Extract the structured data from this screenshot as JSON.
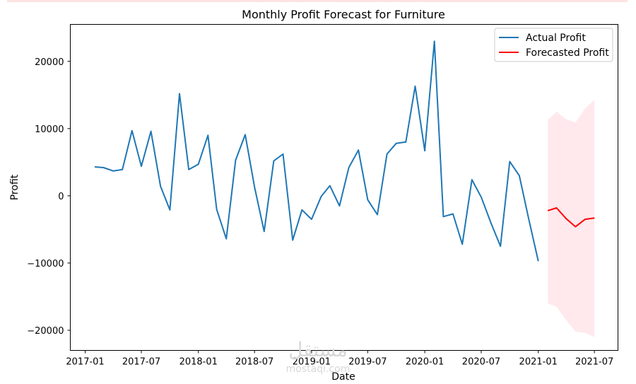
{
  "colors": {
    "actual": "#1f77b4",
    "forecast": "#ff0000",
    "confidence_band": "#ffc0cb",
    "top_strip": "#fde3e1"
  },
  "chart_data": {
    "type": "line",
    "title": "Monthly Profit Forecast for Furniture",
    "xlabel": "Date",
    "ylabel": "Profit",
    "xlim": [
      "2016-11-14",
      "2021-09-15"
    ],
    "ylim": [
      -23000,
      25500
    ],
    "x_ticks": [
      "2017-01",
      "2017-07",
      "2018-01",
      "2018-07",
      "2019-01",
      "2019-07",
      "2020-01",
      "2020-07",
      "2021-01",
      "2021-07"
    ],
    "y_ticks": [
      -20000,
      -10000,
      0,
      10000,
      20000
    ],
    "y_tick_labels": [
      "−20000",
      "−10000",
      "0",
      "10000",
      "20000"
    ],
    "grid": false,
    "legend_position": "top-right",
    "series": [
      {
        "name": "Actual Profit",
        "x": [
          "2017-02-01",
          "2017-03-01",
          "2017-04-01",
          "2017-05-01",
          "2017-06-01",
          "2017-07-01",
          "2017-08-01",
          "2017-09-01",
          "2017-10-01",
          "2017-11-01",
          "2017-12-01",
          "2018-01-01",
          "2018-02-01",
          "2018-03-01",
          "2018-04-01",
          "2018-05-01",
          "2018-06-01",
          "2018-07-01",
          "2018-08-01",
          "2018-09-01",
          "2018-10-01",
          "2018-11-01",
          "2018-12-01",
          "2019-01-01",
          "2019-02-01",
          "2019-03-01",
          "2019-04-01",
          "2019-05-01",
          "2019-06-01",
          "2019-07-01",
          "2019-08-01",
          "2019-09-01",
          "2019-10-01",
          "2019-11-01",
          "2019-12-01",
          "2020-01-01",
          "2020-02-01",
          "2020-03-01",
          "2020-04-01",
          "2020-05-01",
          "2020-06-01",
          "2020-07-01",
          "2020-08-01",
          "2020-09-01",
          "2020-10-01",
          "2020-11-01",
          "2020-12-01",
          "2021-01-01"
        ],
        "values": [
          4300,
          4200,
          3700,
          3900,
          9700,
          4400,
          9600,
          1400,
          -2100,
          15200,
          3900,
          4700,
          9000,
          -2000,
          -6400,
          5300,
          9100,
          1300,
          -5300,
          5200,
          6200,
          -6600,
          -2100,
          -3500,
          -100,
          1500,
          -1500,
          4200,
          6800,
          -600,
          -2800,
          6200,
          7800,
          8000,
          16300,
          6700,
          23000,
          -3100,
          -2700,
          -7200,
          2400,
          -200,
          -4000,
          -7500,
          5100,
          3000,
          -3400,
          -9700
        ]
      },
      {
        "name": "Forecasted Profit",
        "x": [
          "2021-02-01",
          "2021-03-01",
          "2021-04-01",
          "2021-05-01",
          "2021-06-01",
          "2021-07-01"
        ],
        "values": [
          -2200,
          -1800,
          -3400,
          -4600,
          -3500,
          -3300
        ],
        "lower": [
          -16000,
          -16500,
          -18500,
          -20200,
          -20400,
          -21000
        ],
        "upper": [
          11300,
          12500,
          11400,
          10900,
          13000,
          14300
        ]
      }
    ]
  },
  "watermark": {
    "arabic": "مستقل",
    "latin": "mostaqi.com"
  }
}
